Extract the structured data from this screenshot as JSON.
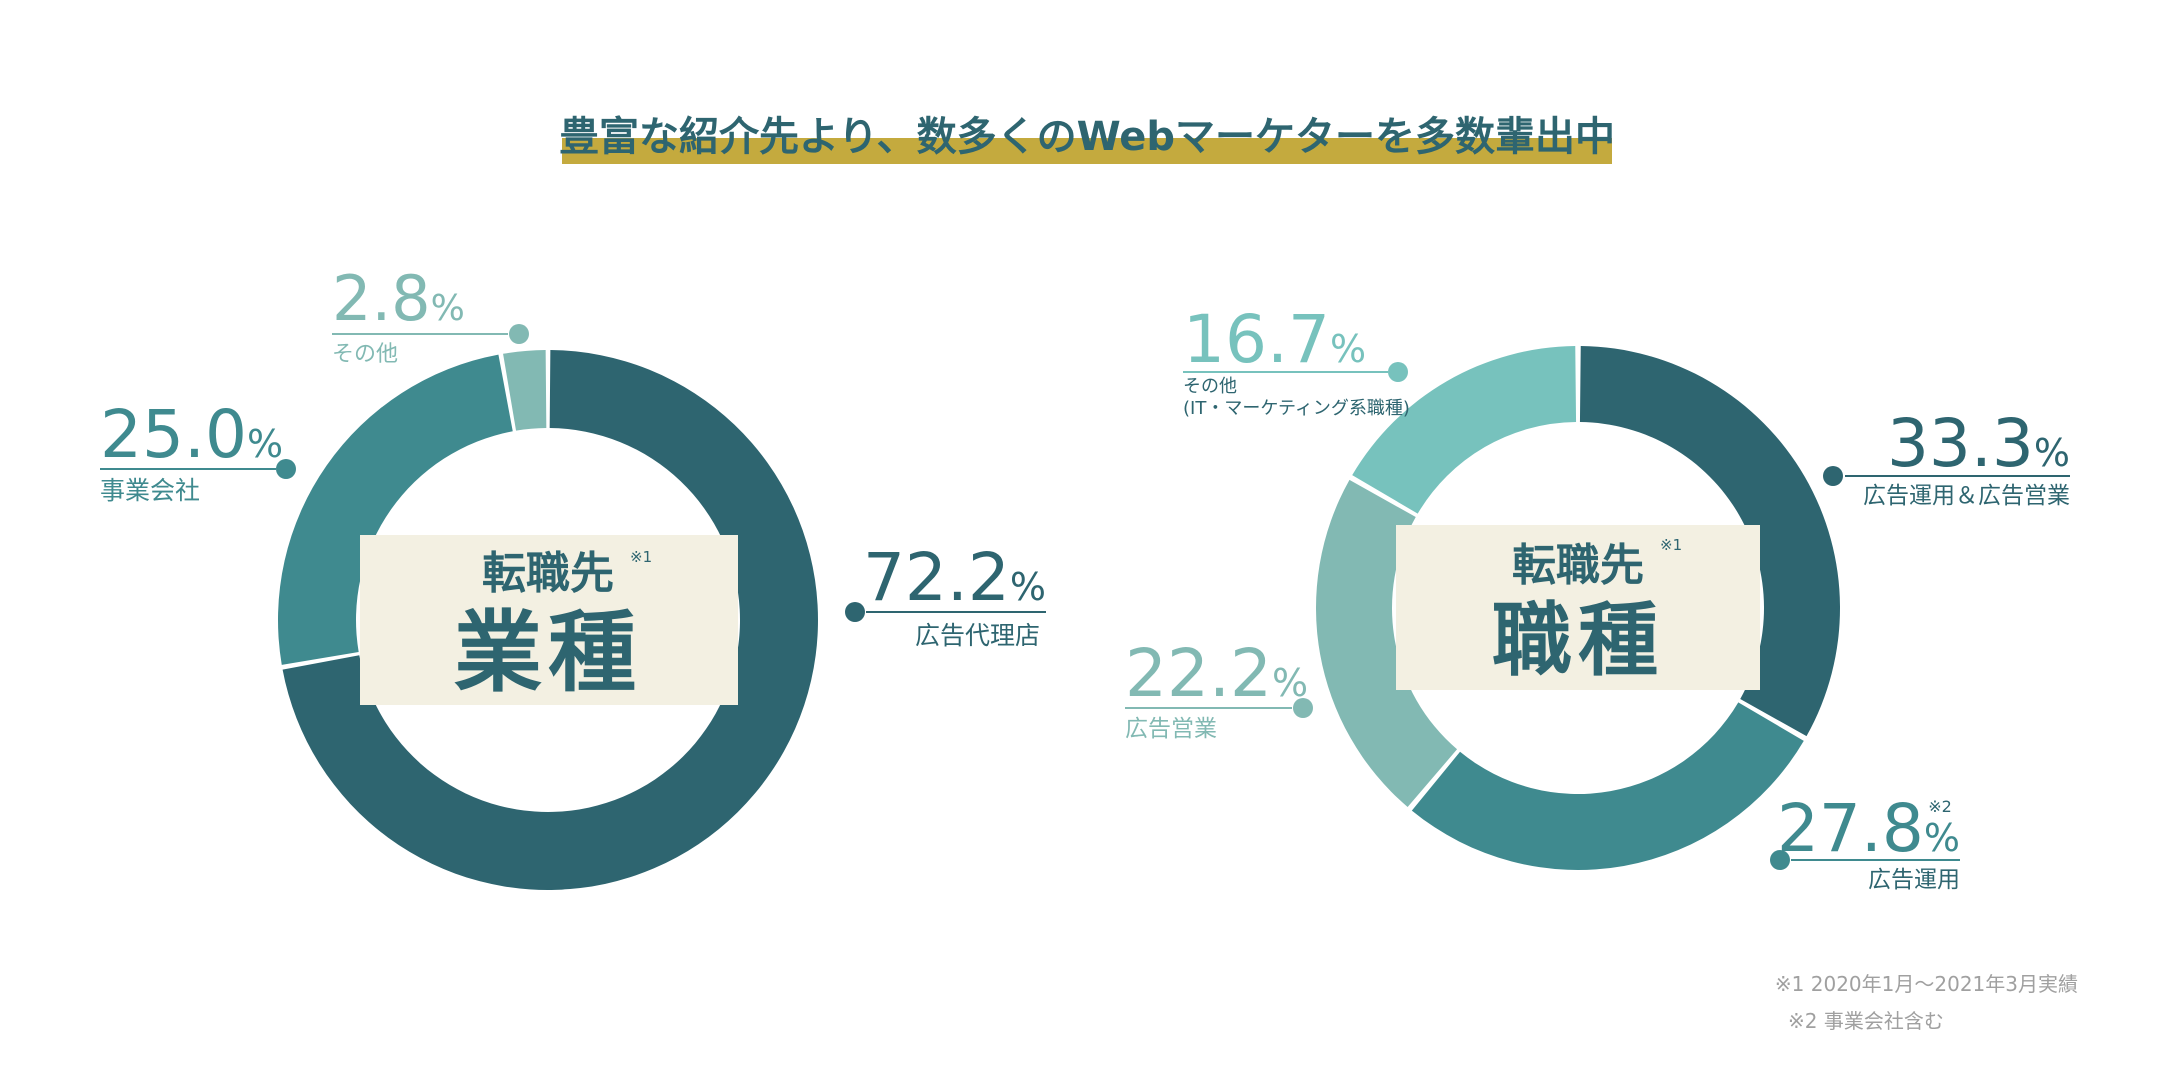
{
  "heading": "豊富な紹介先より、数多くのWebマーケターを多数輩出中",
  "colors": {
    "dark": "#2e6570",
    "mid": "#3f8a8f",
    "light_a": "#82b9b3",
    "light_b": "#77c2bd",
    "heading_text": "#2e6570",
    "heading_bar": "#c4aa3e",
    "center_bg": "#f3f0e2",
    "note_text": "#a0a0a0"
  },
  "chart_data": [
    {
      "type": "pie",
      "variant": "donut",
      "title": "転職先 業種",
      "center_small": "転職先",
      "center_large": "業種",
      "center_note": "※1",
      "slices": [
        {
          "label": "広告代理店",
          "value": 72.2,
          "value_text": "72.2",
          "note": "",
          "color": "dark"
        },
        {
          "label": "事業会社",
          "value": 25.0,
          "value_text": "25.0",
          "note": "",
          "color": "mid"
        },
        {
          "label": "その他",
          "value": 2.8,
          "value_text": "2.8",
          "note": "",
          "color": "light_a"
        }
      ]
    },
    {
      "type": "pie",
      "variant": "donut",
      "title": "転職先 職種",
      "center_small": "転職先",
      "center_large": "職種",
      "center_note": "※1",
      "slices": [
        {
          "label": "広告運用＆広告営業",
          "value": 33.3,
          "value_text": "33.3",
          "note": "",
          "color": "dark"
        },
        {
          "label": "広告運用",
          "value": 27.8,
          "value_text": "27.8",
          "note": "※2",
          "color": "mid"
        },
        {
          "label": "広告営業",
          "value": 22.2,
          "value_text": "22.2",
          "note": "",
          "color": "light_a"
        },
        {
          "label": "その他",
          "label2": "(IT・マーケティング系職種)",
          "value": 16.7,
          "value_text": "16.7",
          "note": "",
          "color": "light_b"
        }
      ]
    }
  ],
  "percent_sign": "%",
  "footnotes": [
    "※1 2020年1月〜2021年3月実績",
    "※2 事業会社含む"
  ]
}
